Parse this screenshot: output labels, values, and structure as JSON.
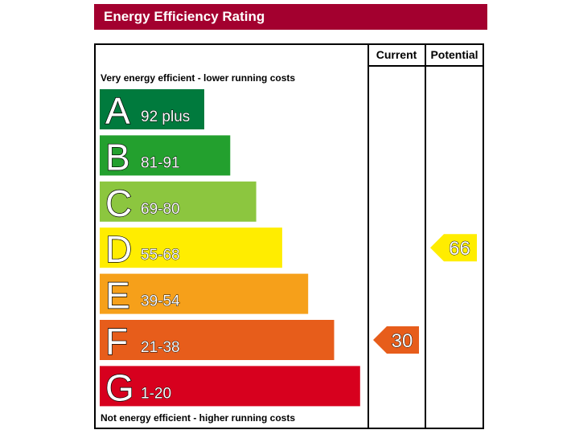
{
  "title": "Energy Efficiency Rating",
  "chart_data": {
    "type": "bar",
    "columns": {
      "current": "Current",
      "potential": "Potential"
    },
    "top_caption": "Very energy efficient - lower running costs",
    "bottom_caption": "Not energy efficient - higher running costs",
    "bands": [
      {
        "letter": "A",
        "range": "92 plus",
        "min": 92,
        "max": 100,
        "color": "#007a3d"
      },
      {
        "letter": "B",
        "range": "81-91",
        "min": 81,
        "max": 91,
        "color": "#23a02e"
      },
      {
        "letter": "C",
        "range": "69-80",
        "min": 69,
        "max": 80,
        "color": "#8cc63f"
      },
      {
        "letter": "D",
        "range": "55-68",
        "min": 55,
        "max": 68,
        "color": "#ffed00"
      },
      {
        "letter": "E",
        "range": "39-54",
        "min": 39,
        "max": 54,
        "color": "#f6a01a"
      },
      {
        "letter": "F",
        "range": "21-38",
        "min": 21,
        "max": 38,
        "color": "#e75d1b"
      },
      {
        "letter": "G",
        "range": "1-20",
        "min": 1,
        "max": 20,
        "color": "#d7001e"
      }
    ],
    "current": 30,
    "potential": 66
  }
}
